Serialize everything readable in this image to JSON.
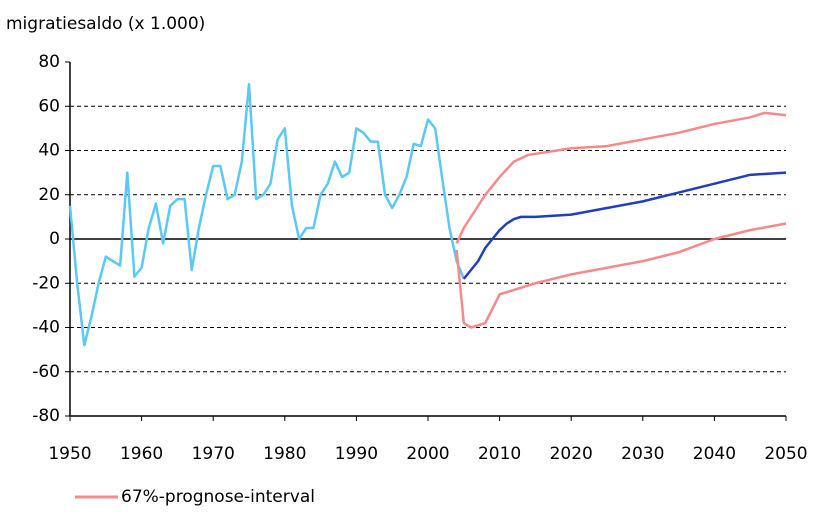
{
  "chart_data": {
    "type": "line",
    "title": "migratiesaldo (x 1.000)",
    "xlim": [
      1950,
      2050
    ],
    "xticks": [
      1950,
      1960,
      1970,
      1980,
      1990,
      2000,
      2010,
      2020,
      2030,
      2040,
      2050
    ],
    "ylim": [
      -80,
      80
    ],
    "yticks": [
      -80,
      -60,
      -40,
      -20,
      0,
      20,
      40,
      60,
      80
    ],
    "grid": true,
    "legend": "bottom-left",
    "series": [
      {
        "color": "#5bc8f5",
        "x": [
          1950,
          1951,
          1952,
          1953,
          1954,
          1955,
          1956,
          1957,
          1958,
          1959,
          1960,
          1961,
          1962,
          1963,
          1964,
          1965,
          1966,
          1967,
          1968,
          1969,
          1970,
          1971,
          1972,
          1973,
          1974,
          1975,
          1976,
          1977,
          1978,
          1979,
          1980,
          1981,
          1982,
          1983,
          1984,
          1985,
          1986,
          1987,
          1988,
          1989,
          1990,
          1991,
          1992,
          1993,
          1994,
          1995,
          1996,
          1997,
          1998,
          1999,
          2000,
          2001,
          2002,
          2003,
          2004,
          2005
        ],
        "values": [
          15,
          -20,
          -48,
          -35,
          -20,
          -8,
          -10,
          -12,
          30,
          -17,
          -13,
          5,
          16,
          -2,
          15,
          18,
          18,
          -14,
          5,
          20,
          33,
          33,
          18,
          20,
          35,
          70,
          18,
          20,
          25,
          45,
          50,
          15,
          0,
          5,
          5,
          20,
          25,
          35,
          28,
          30,
          50,
          48,
          44,
          44,
          20,
          14,
          20,
          28,
          43,
          42,
          54,
          50,
          27,
          5,
          -10,
          -18
        ]
      },
      {
        "color": "#1f3fbf",
        "x": [
          2005,
          2006,
          2007,
          2008,
          2009,
          2010,
          2011,
          2012,
          2013,
          2015,
          2020,
          2025,
          2030,
          2035,
          2040,
          2045,
          2050
        ],
        "values": [
          -18,
          -14,
          -10,
          -4,
          0,
          4,
          7,
          9,
          10,
          10,
          11,
          14,
          17,
          21,
          25,
          29,
          30
        ]
      },
      {
        "name": "67%-prognose-interval",
        "color": "#f58a8a",
        "x": [
          2004,
          2005,
          2006,
          2008,
          2010,
          2012,
          2014,
          2018,
          2020,
          2025,
          2030,
          2035,
          2040,
          2045,
          2047,
          2050
        ],
        "upper": [
          -2,
          5,
          10,
          20,
          28,
          35,
          38,
          40,
          41,
          42,
          45,
          48,
          52,
          55,
          57,
          56
        ],
        "x_lower": [
          2004,
          2005,
          2006,
          2008,
          2010,
          2012,
          2015,
          2020,
          2025,
          2030,
          2035,
          2040,
          2045,
          2050
        ],
        "lower": [
          -5,
          -38,
          -40,
          -38,
          -25,
          -23,
          -20,
          -16,
          -13,
          -10,
          -6,
          0,
          4,
          7
        ]
      }
    ]
  }
}
